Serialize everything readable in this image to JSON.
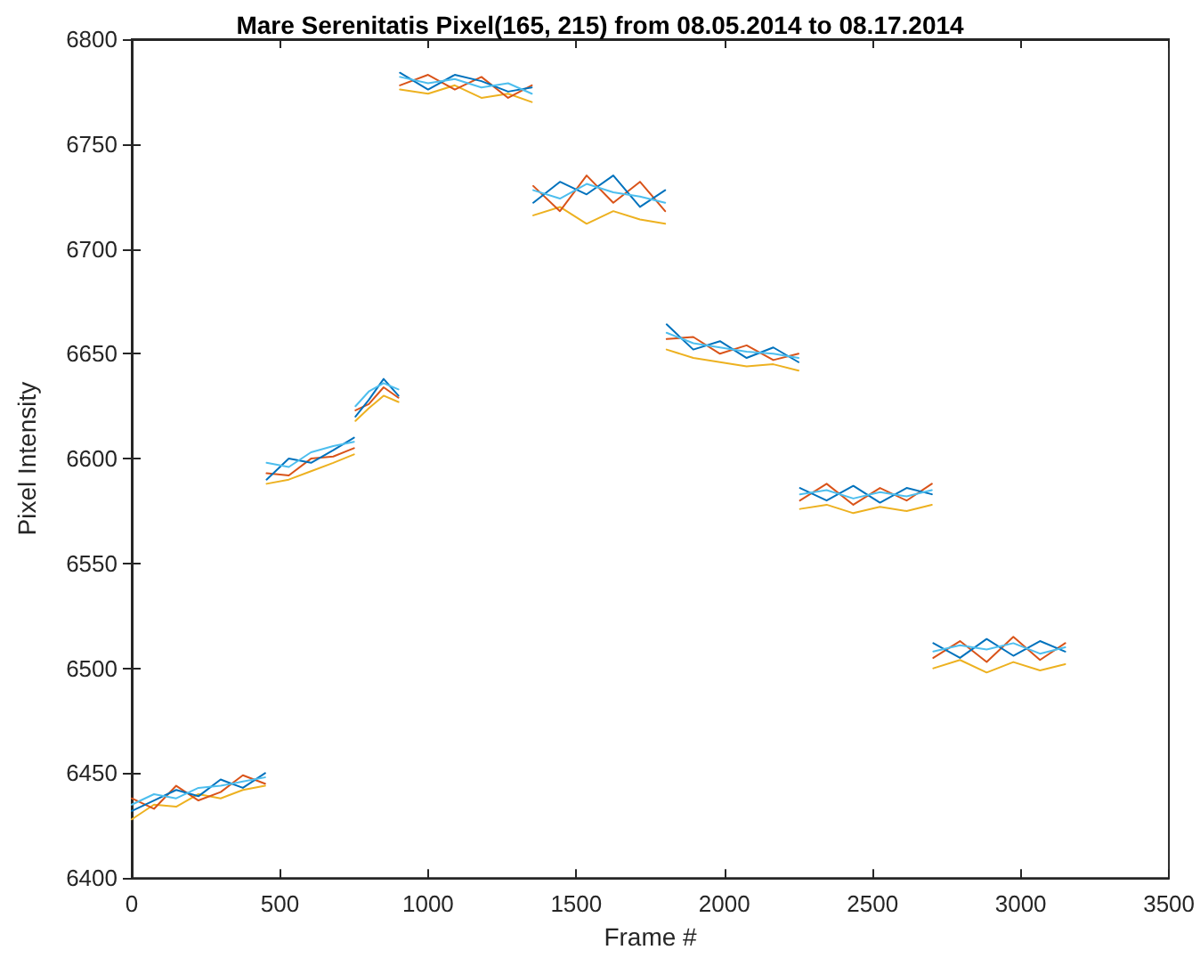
{
  "chart_data": {
    "type": "line",
    "title": "Mare Serenitatis Pixel(165, 215) from 08.05.2014 to 08.17.2014",
    "xlabel": "Frame #",
    "ylabel": "Pixel Intensity",
    "x": [
      0,
      75,
      150,
      225,
      300,
      375,
      450,
      452,
      455,
      530,
      605,
      680,
      750,
      752,
      755,
      800,
      850,
      900,
      902,
      905,
      1000,
      1090,
      1180,
      1270,
      1350,
      1352,
      1355,
      1445,
      1535,
      1625,
      1715,
      1800,
      1802,
      1805,
      1895,
      1985,
      2075,
      2165,
      2250,
      2252,
      2255,
      2345,
      2435,
      2525,
      2615,
      2700,
      2702,
      2705,
      2795,
      2885,
      2975,
      3065,
      3150
    ],
    "series": [
      {
        "color": "#edb120",
        "values": [
          6428,
          6435,
          6434,
          6440,
          6438,
          6442,
          6444,
          null,
          6588,
          6590,
          6594,
          6598,
          6602,
          null,
          6618,
          6624,
          6630,
          6627,
          null,
          6776,
          6774,
          6778,
          6772,
          6774,
          6770,
          null,
          6716,
          6720,
          6712,
          6718,
          6714,
          6712,
          null,
          6652,
          6648,
          6646,
          6644,
          6645,
          6642,
          null,
          6576,
          6578,
          6574,
          6577,
          6575,
          6578,
          null,
          6500,
          6504,
          6498,
          6503,
          6499,
          6502
        ]
      },
      {
        "color": "#d95319",
        "values": [
          6438,
          6433,
          6444,
          6437,
          6441,
          6449,
          6445,
          null,
          6593,
          6592,
          6600,
          6601,
          6605,
          null,
          6623,
          6626,
          6634,
          6629,
          null,
          6778,
          6783,
          6776,
          6782,
          6772,
          6778,
          null,
          6730,
          6718,
          6735,
          6722,
          6732,
          6718,
          null,
          6657,
          6658,
          6650,
          6654,
          6647,
          6650,
          null,
          6580,
          6588,
          6578,
          6586,
          6580,
          6588,
          null,
          6505,
          6513,
          6503,
          6515,
          6504,
          6512
        ]
      },
      {
        "color": "#0072bd",
        "values": [
          6432,
          6437,
          6442,
          6439,
          6447,
          6443,
          6450,
          null,
          6590,
          6600,
          6598,
          6604,
          6610,
          null,
          6620,
          6628,
          6638,
          6630,
          null,
          6784,
          6776,
          6783,
          6780,
          6775,
          6777,
          null,
          6722,
          6732,
          6726,
          6735,
          6720,
          6728,
          null,
          6664,
          6652,
          6656,
          6648,
          6653,
          6646,
          null,
          6586,
          6580,
          6587,
          6579,
          6586,
          6583,
          null,
          6512,
          6505,
          6514,
          6506,
          6513,
          6508
        ]
      },
      {
        "color": "#4dbeee",
        "values": [
          6435,
          6440,
          6438,
          6443,
          6444,
          6446,
          6448,
          null,
          6598,
          6596,
          6603,
          6606,
          6608,
          null,
          6625,
          6632,
          6636,
          6633,
          null,
          6782,
          6779,
          6781,
          6777,
          6779,
          6774,
          null,
          6728,
          6724,
          6731,
          6727,
          6725,
          6722,
          null,
          6660,
          6655,
          6653,
          6651,
          6650,
          6648,
          null,
          6583,
          6585,
          6581,
          6584,
          6582,
          6585,
          null,
          6508,
          6511,
          6509,
          6512,
          6507,
          6510
        ]
      }
    ],
    "xlim": [
      0,
      3500
    ],
    "xticks": [
      0,
      500,
      1000,
      1500,
      2000,
      2500,
      3000,
      3500
    ],
    "ylim": [
      6400,
      6800
    ],
    "yticks": [
      6400,
      6450,
      6500,
      6550,
      6600,
      6650,
      6700,
      6750,
      6800
    ],
    "grid": false,
    "marker": "none",
    "line_style": "solid"
  }
}
